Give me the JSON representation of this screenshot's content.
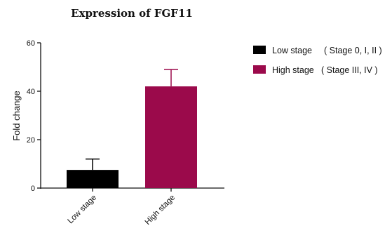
{
  "chart_data": {
    "type": "bar",
    "title": "Expression of FGF11",
    "xlabel": "",
    "ylabel": "Fold change",
    "ylim": [
      0,
      60
    ],
    "yticks": [
      0,
      20,
      40,
      60
    ],
    "categories": [
      "Low stage",
      "High stage"
    ],
    "values": [
      7.5,
      42
    ],
    "errors": [
      4.5,
      7
    ],
    "colors": [
      "#000000",
      "#9b0a4b"
    ],
    "legend": {
      "placement": "right",
      "entries": [
        {
          "label": "Low stage",
          "detail": "( Stage 0, I, II )",
          "color": "#000000"
        },
        {
          "label": "High stage",
          "detail": "( Stage III, IV )",
          "color": "#9b0a4b"
        }
      ]
    }
  }
}
